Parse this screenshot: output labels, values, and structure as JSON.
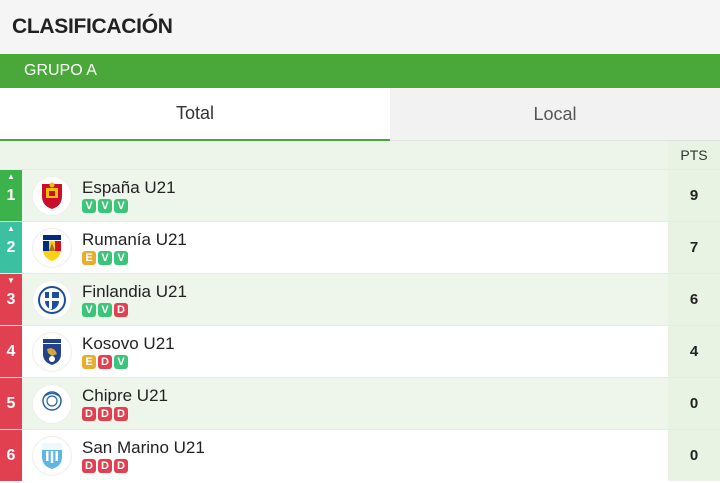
{
  "header": {
    "title": "CLASIFICACIÓN"
  },
  "group": {
    "label": "GRUPO A"
  },
  "tabs": [
    {
      "label": "Total",
      "active": true
    },
    {
      "label": "Local",
      "active": false
    }
  ],
  "table": {
    "pts_header": "PTS",
    "rows": [
      {
        "pos": "1",
        "trend": "up",
        "zone": "green",
        "team": "España U21",
        "crest": "spain-crest-icon",
        "form": [
          "V",
          "V",
          "V"
        ],
        "pts": "9"
      },
      {
        "pos": "2",
        "trend": "up",
        "zone": "teal",
        "team": "Rumanía U21",
        "crest": "romania-crest-icon",
        "form": [
          "E",
          "V",
          "V"
        ],
        "pts": "7"
      },
      {
        "pos": "3",
        "trend": "down",
        "zone": "red",
        "team": "Finlandia U21",
        "crest": "finland-crest-icon",
        "form": [
          "V",
          "V",
          "D"
        ],
        "pts": "6"
      },
      {
        "pos": "4",
        "trend": "",
        "zone": "red",
        "team": "Kosovo U21",
        "crest": "kosovo-crest-icon",
        "form": [
          "E",
          "D",
          "V"
        ],
        "pts": "4"
      },
      {
        "pos": "5",
        "trend": "",
        "zone": "red",
        "team": "Chipre U21",
        "crest": "cyprus-crest-icon",
        "form": [
          "D",
          "D",
          "D"
        ],
        "pts": "0",
        "crest_text": "KOΠ CFA"
      },
      {
        "pos": "6",
        "trend": "",
        "zone": "red",
        "team": "San Marino U21",
        "crest": "san-marino-crest-icon",
        "form": [
          "D",
          "D",
          "D"
        ],
        "pts": "0"
      }
    ]
  },
  "colors": {
    "accent": "#4aa83a",
    "win": "#3bc47a",
    "draw": "#e8ad2c",
    "loss": "#e0404f",
    "promotion": "#3cb34a",
    "playoff": "#3bc1a2"
  }
}
